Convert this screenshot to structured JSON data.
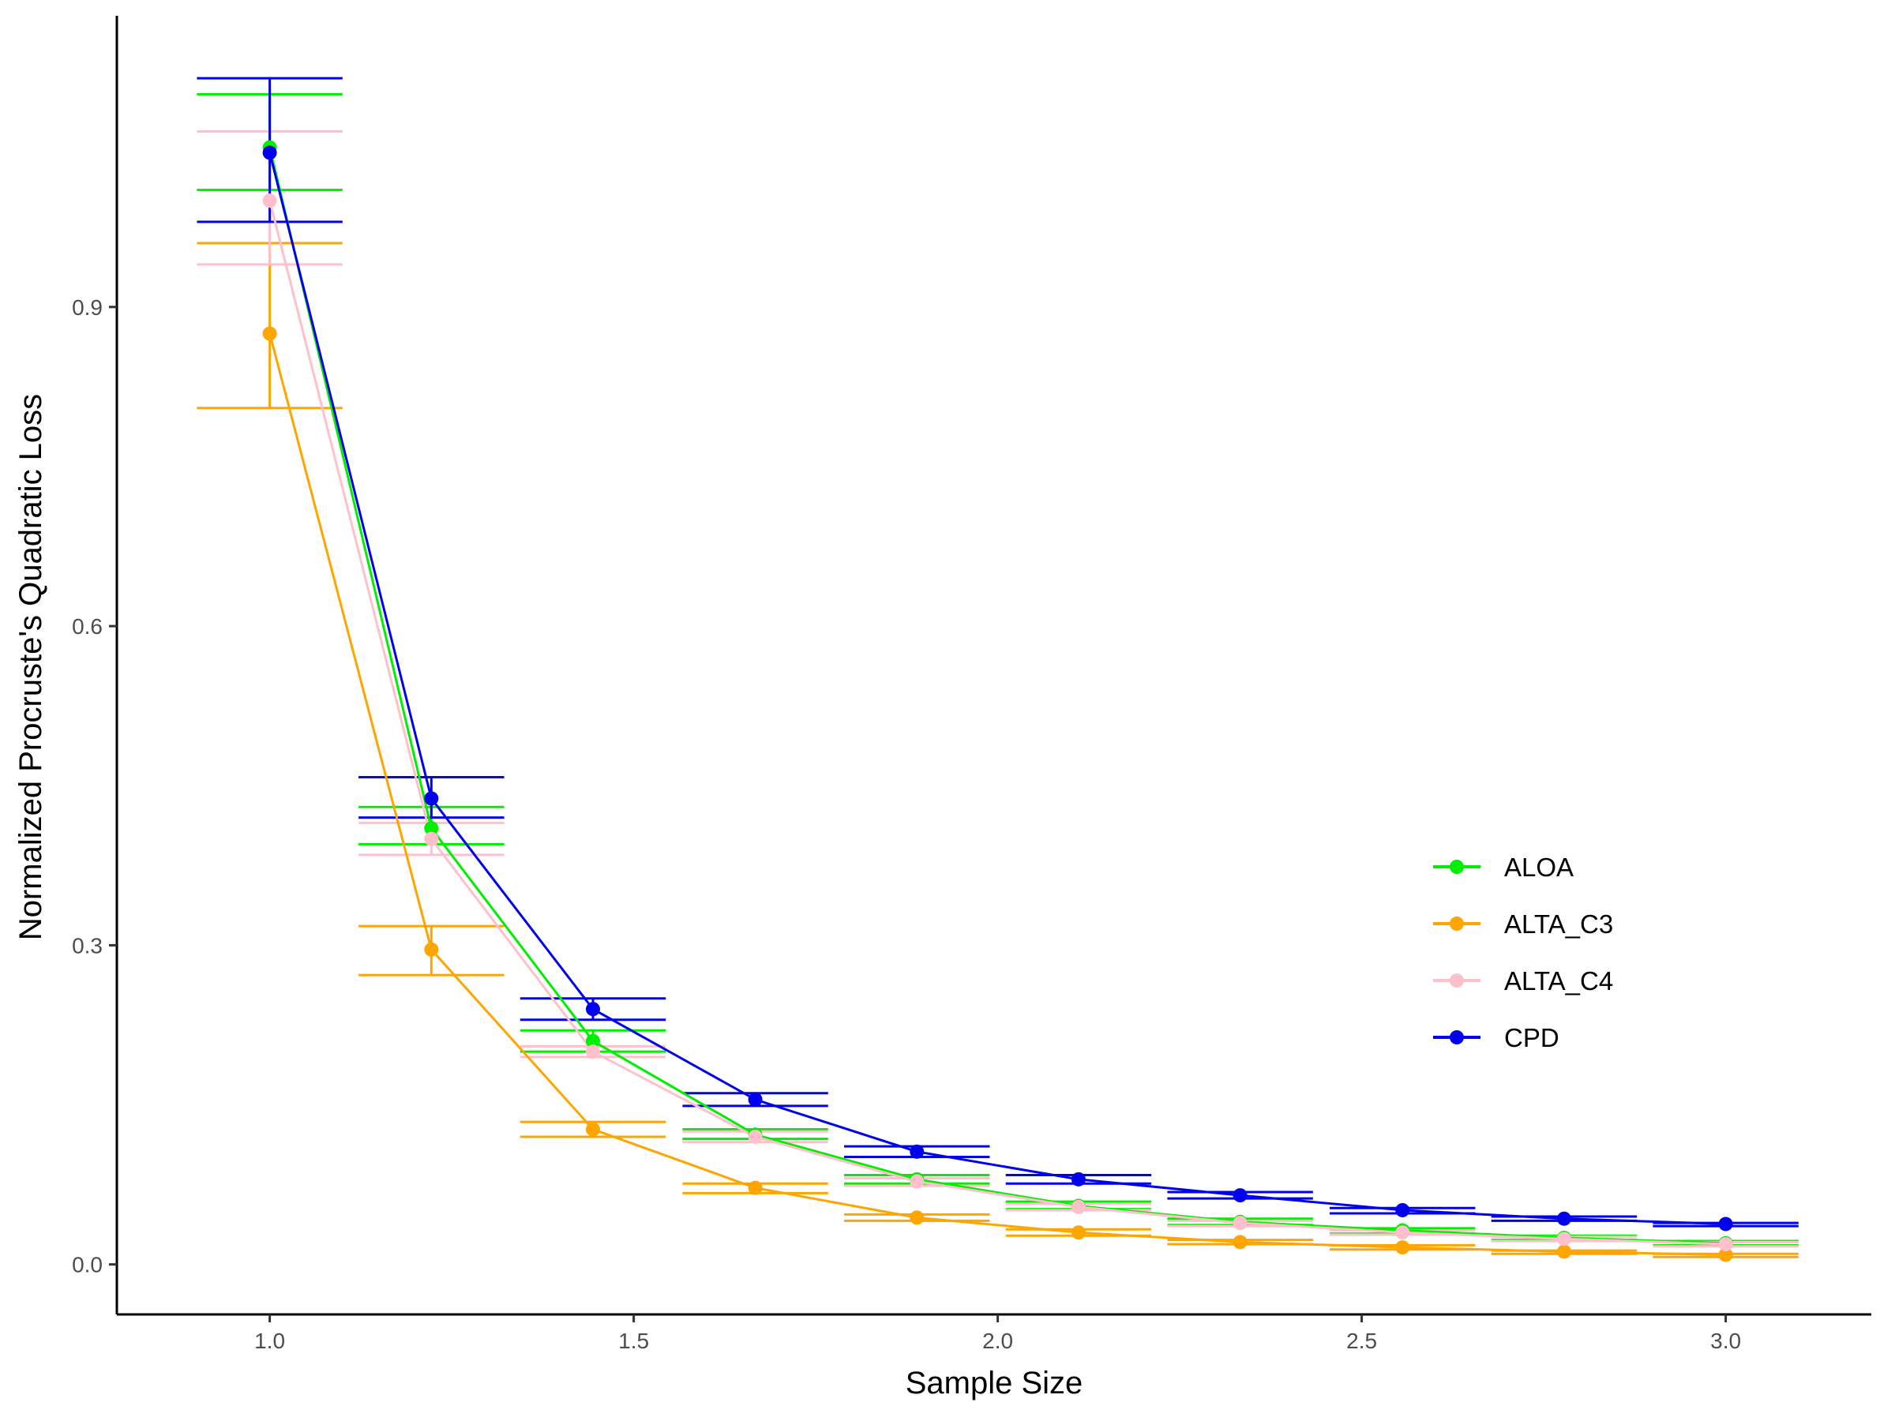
{
  "chart_data": {
    "type": "line",
    "xlabel": "Sample Size",
    "ylabel": "Normalized Procruste's Quadratic Loss",
    "xlim": [
      0.79,
      3.2
    ],
    "ylim": [
      -0.047,
      1.17
    ],
    "x_ticks": [
      1.0,
      1.5,
      2.0,
      2.5,
      3.0
    ],
    "x_tick_labels": [
      "1.0",
      "1.5",
      "2.0",
      "2.5",
      "3.0"
    ],
    "y_ticks": [
      0.0,
      0.3,
      0.6,
      0.9
    ],
    "y_tick_labels": [
      "0.0",
      "0.3",
      "0.6",
      "0.9"
    ],
    "grid": false,
    "legend_position": "right",
    "errorbar_half_width": 0.1,
    "x": [
      1.0,
      1.222,
      1.444,
      1.667,
      1.889,
      2.111,
      2.333,
      2.556,
      2.778,
      3.0
    ],
    "series": [
      {
        "name": "ALOA",
        "color": "#00ee00",
        "values": [
          1.05,
          0.41,
          0.21,
          0.122,
          0.08,
          0.055,
          0.04,
          0.032,
          0.025,
          0.02
        ],
        "lower": [
          1.01,
          0.395,
          0.2,
          0.118,
          0.076,
          0.052,
          0.037,
          0.029,
          0.023,
          0.018
        ],
        "upper": [
          1.1,
          0.43,
          0.22,
          0.127,
          0.084,
          0.059,
          0.043,
          0.034,
          0.027,
          0.022
        ]
      },
      {
        "name": "ALTA_C3",
        "color": "#ffa500",
        "values": [
          0.875,
          0.296,
          0.127,
          0.072,
          0.044,
          0.03,
          0.021,
          0.016,
          0.012,
          0.009
        ],
        "lower": [
          0.805,
          0.272,
          0.12,
          0.067,
          0.041,
          0.027,
          0.019,
          0.014,
          0.01,
          0.007
        ],
        "upper": [
          0.96,
          0.318,
          0.134,
          0.076,
          0.047,
          0.033,
          0.023,
          0.018,
          0.013,
          0.01
        ]
      },
      {
        "name": "ALTA_C4",
        "color": "#ffc0cb",
        "values": [
          1.0,
          0.4,
          0.2,
          0.12,
          0.078,
          0.054,
          0.039,
          0.03,
          0.024,
          0.019
        ],
        "lower": [
          0.94,
          0.385,
          0.195,
          0.115,
          0.074,
          0.051,
          0.036,
          0.028,
          0.022,
          0.017
        ],
        "upper": [
          1.065,
          0.415,
          0.205,
          0.125,
          0.081,
          0.057,
          0.041,
          0.032,
          0.026,
          0.021
        ]
      },
      {
        "name": "CPD",
        "color": "#0000ee",
        "values": [
          1.045,
          0.438,
          0.24,
          0.155,
          0.106,
          0.08,
          0.065,
          0.051,
          0.043,
          0.038
        ],
        "lower": [
          0.98,
          0.42,
          0.23,
          0.149,
          0.101,
          0.076,
          0.062,
          0.048,
          0.041,
          0.036
        ],
        "upper": [
          1.115,
          0.458,
          0.25,
          0.161,
          0.111,
          0.084,
          0.068,
          0.053,
          0.045,
          0.039
        ]
      }
    ]
  }
}
